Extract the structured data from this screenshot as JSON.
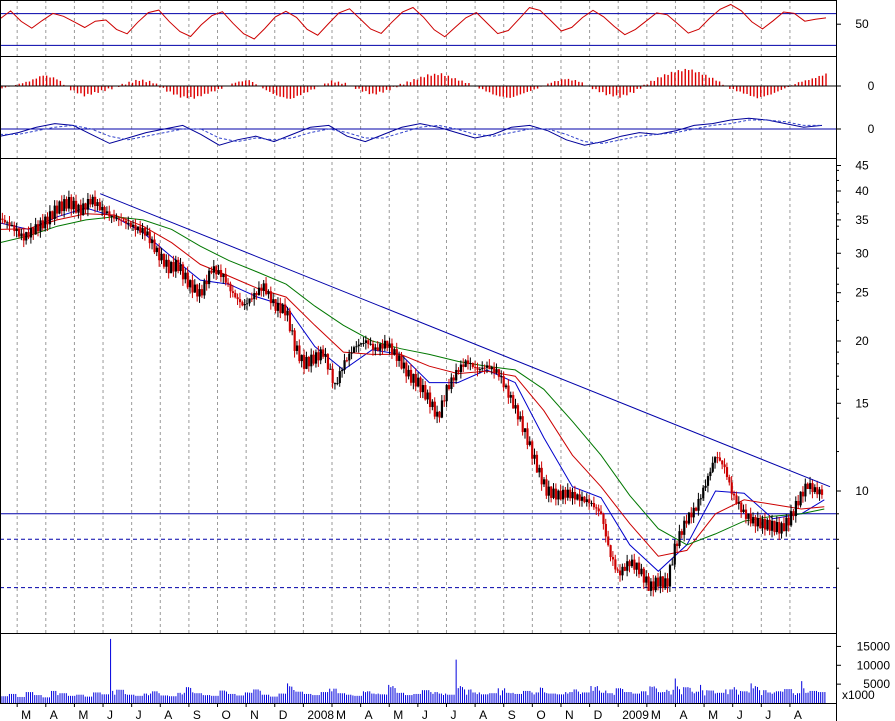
{
  "colors": {
    "background": "#ffffff",
    "frame": "#000000",
    "grid": "#9a9a9a",
    "price_up": "#000000",
    "price_down": "#cc0000",
    "ma_fast": "#0000cc",
    "ma_mid": "#cc0000",
    "ma_slow": "#007700",
    "trendline": "#0000aa",
    "hline": "#0000aa",
    "osc_line": "#cc0000",
    "hist": "#dd0000",
    "macd_line": "#000099",
    "macd_signal": "#3344cc",
    "volume": "#0000dd"
  },
  "chart_data": [
    {
      "type": "line",
      "panel": "oscillator",
      "ylim": [
        0,
        100
      ],
      "y_ticks": [
        50
      ],
      "reference_levels": [
        60,
        30
      ],
      "series": [
        {
          "values": [
            55,
            60,
            50,
            46,
            56,
            63,
            58,
            50,
            44,
            52,
            56,
            48,
            42,
            50,
            58,
            62,
            54,
            46,
            40,
            48,
            55,
            60,
            52,
            44,
            38,
            45,
            54,
            60,
            57,
            48,
            42,
            50,
            58,
            62,
            55,
            48,
            44,
            52,
            59,
            63,
            56,
            47,
            41,
            48,
            54,
            58,
            50,
            43,
            47,
            56,
            64,
            60,
            52,
            45,
            50,
            58,
            62,
            54,
            46,
            41,
            48,
            55,
            60,
            56,
            48,
            42,
            48,
            58,
            64,
            66,
            60,
            52,
            48,
            56,
            62,
            58,
            50,
            54,
            58
          ]
        }
      ]
    },
    {
      "type": "bar",
      "panel": "histogram",
      "y_ticks": [
        0
      ],
      "series": [
        {
          "values": [
            -0.2,
            0.1,
            0.4,
            0.9,
            0.6,
            -0.3,
            -0.8,
            -0.5,
            -0.2,
            0.2,
            0.5,
            0.3,
            -0.4,
            -0.9,
            -1.0,
            -0.6,
            -0.2,
            0.3,
            0.5,
            -0.2,
            -0.8,
            -1.1,
            -0.6,
            -0.1,
            0.4,
            0.2,
            -0.3,
            -0.7,
            -0.4,
            0.1,
            0.5,
            0.9,
            1.0,
            0.6,
            0.2,
            -0.3,
            -0.8,
            -1.0,
            -0.6,
            -0.2,
            0.3,
            0.6,
            0.4,
            -0.2,
            -0.7,
            -0.9,
            -0.5,
            0.2,
            0.8,
            1.2,
            1.4,
            1.0,
            0.5,
            -0.2,
            -0.6,
            -1.0,
            -0.7,
            -0.2,
            0.3,
            0.6,
            1.0
          ]
        }
      ]
    },
    {
      "type": "line",
      "panel": "macd",
      "y_ticks": [
        0
      ],
      "series": [
        {
          "values": [
            -0.4,
            -0.2,
            0.1,
            0.3,
            0.2,
            -0.3,
            -0.8,
            -0.5,
            -0.2,
            0.0,
            0.2,
            -0.3,
            -0.9,
            -0.6,
            -0.4,
            -0.7,
            -0.3,
            0.1,
            0.2,
            -0.4,
            -0.7,
            -0.3,
            0.1,
            0.3,
            0.1,
            -0.2,
            -0.5,
            -0.3,
            0.1,
            0.2,
            -0.1,
            -0.6,
            -0.9,
            -0.7,
            -0.4,
            -0.2,
            -0.3,
            -0.1,
            0.2,
            0.3,
            0.5,
            0.6,
            0.5,
            0.3,
            0.1,
            0.2
          ]
        },
        {
          "values": [
            -0.3,
            -0.3,
            -0.1,
            0.1,
            0.2,
            0.0,
            -0.4,
            -0.6,
            -0.4,
            -0.2,
            0.0,
            0.0,
            -0.5,
            -0.7,
            -0.5,
            -0.6,
            -0.5,
            -0.2,
            0.0,
            -0.2,
            -0.5,
            -0.5,
            -0.2,
            0.1,
            0.2,
            0.0,
            -0.3,
            -0.4,
            -0.2,
            0.0,
            0.0,
            -0.3,
            -0.7,
            -0.8,
            -0.6,
            -0.4,
            -0.3,
            -0.2,
            0.0,
            0.2,
            0.3,
            0.5,
            0.5,
            0.4,
            0.2,
            0.2
          ]
        }
      ]
    },
    {
      "type": "line",
      "panel": "price",
      "log_scale": true,
      "ylim": [
        6.2,
        47
      ],
      "y_ticks": [
        45,
        40,
        35,
        30,
        25,
        20,
        15,
        10
      ],
      "x_ticks": [
        "M",
        "A",
        "M",
        "J",
        "J",
        "A",
        "S",
        "O",
        "N",
        "D",
        "2008",
        "M",
        "A",
        "M",
        "J",
        "J",
        "A",
        "S",
        "O",
        "N",
        "D",
        "2009",
        "M",
        "A",
        "M",
        "J",
        "J",
        "A"
      ],
      "x_range_months": [
        0,
        29
      ],
      "price": [
        [
          0.0,
          35.2
        ],
        [
          0.4,
          34.0
        ],
        [
          0.8,
          32.2
        ],
        [
          1.2,
          33.5
        ],
        [
          1.6,
          34.8
        ],
        [
          2.0,
          37.0
        ],
        [
          2.4,
          38.0
        ],
        [
          2.8,
          36.5
        ],
        [
          3.2,
          38.5
        ],
        [
          3.5,
          37.0
        ],
        [
          3.9,
          35.5
        ],
        [
          4.3,
          34.8
        ],
        [
          4.7,
          33.8
        ],
        [
          5.1,
          33.0
        ],
        [
          5.5,
          30.0
        ],
        [
          5.9,
          28.0
        ],
        [
          6.2,
          28.5
        ],
        [
          6.6,
          26.0
        ],
        [
          7.0,
          24.8
        ],
        [
          7.4,
          28.0
        ],
        [
          7.8,
          27.0
        ],
        [
          8.1,
          25.0
        ],
        [
          8.5,
          23.5
        ],
        [
          8.9,
          24.8
        ],
        [
          9.2,
          25.8
        ],
        [
          9.6,
          23.5
        ],
        [
          10.0,
          23.0
        ],
        [
          10.3,
          19.5
        ],
        [
          10.6,
          18.0
        ],
        [
          11.0,
          18.5
        ],
        [
          11.3,
          19.0
        ],
        [
          11.7,
          16.2
        ],
        [
          12.0,
          18.0
        ],
        [
          12.4,
          19.5
        ],
        [
          12.8,
          20.0
        ],
        [
          13.1,
          19.2
        ],
        [
          13.5,
          19.8
        ],
        [
          13.9,
          18.5
        ],
        [
          14.3,
          17.0
        ],
        [
          14.6,
          16.5
        ],
        [
          15.0,
          15.2
        ],
        [
          15.3,
          14.0
        ],
        [
          15.6,
          16.0
        ],
        [
          16.0,
          17.5
        ],
        [
          16.3,
          18.2
        ],
        [
          16.7,
          17.5
        ],
        [
          17.0,
          17.8
        ],
        [
          17.4,
          17.3
        ],
        [
          17.8,
          15.5
        ],
        [
          18.1,
          14.2
        ],
        [
          18.4,
          12.8
        ],
        [
          18.8,
          11.0
        ],
        [
          19.1,
          10.0
        ],
        [
          19.5,
          9.8
        ],
        [
          19.8,
          9.9
        ],
        [
          20.2,
          9.7
        ],
        [
          20.6,
          9.5
        ],
        [
          21.0,
          9.0
        ],
        [
          21.3,
          7.5
        ],
        [
          21.6,
          6.8
        ],
        [
          22.0,
          7.2
        ],
        [
          22.3,
          7.0
        ],
        [
          22.7,
          6.4
        ],
        [
          23.0,
          6.6
        ],
        [
          23.3,
          6.5
        ],
        [
          23.6,
          7.8
        ],
        [
          24.0,
          8.8
        ],
        [
          24.3,
          9.2
        ],
        [
          24.7,
          10.5
        ],
        [
          25.0,
          11.8
        ],
        [
          25.3,
          11.2
        ],
        [
          25.6,
          9.8
        ],
        [
          26.0,
          9.0
        ],
        [
          26.3,
          8.7
        ],
        [
          26.6,
          8.6
        ],
        [
          27.0,
          8.5
        ],
        [
          27.3,
          8.4
        ],
        [
          27.6,
          8.8
        ],
        [
          27.9,
          9.6
        ],
        [
          28.2,
          10.3
        ],
        [
          28.5,
          10.0
        ],
        [
          28.8,
          9.9
        ]
      ],
      "moving_averages": [
        {
          "points": [
            [
              0.0,
              34.5
            ],
            [
              1.0,
              33.5
            ],
            [
              2.0,
              35.5
            ],
            [
              3.0,
              37.0
            ],
            [
              4.0,
              35.5
            ],
            [
              5.0,
              33.0
            ],
            [
              6.0,
              29.5
            ],
            [
              7.0,
              26.5
            ],
            [
              8.0,
              26.0
            ],
            [
              9.0,
              24.5
            ],
            [
              10.0,
              23.5
            ],
            [
              11.0,
              19.5
            ],
            [
              12.0,
              17.5
            ],
            [
              13.0,
              19.2
            ],
            [
              14.0,
              18.8
            ],
            [
              15.0,
              16.5
            ],
            [
              16.0,
              16.5
            ],
            [
              17.0,
              17.5
            ],
            [
              18.0,
              16.5
            ],
            [
              19.0,
              12.8
            ],
            [
              20.0,
              10.2
            ],
            [
              21.0,
              9.7
            ],
            [
              22.0,
              7.8
            ],
            [
              23.0,
              6.9
            ],
            [
              24.0,
              7.8
            ],
            [
              25.0,
              10.0
            ],
            [
              26.0,
              9.9
            ],
            [
              27.0,
              8.8
            ],
            [
              28.0,
              9.0
            ],
            [
              28.8,
              9.6
            ]
          ]
        },
        {
          "points": [
            [
              0.0,
              33.5
            ],
            [
              1.0,
              33.6
            ],
            [
              2.0,
              35.0
            ],
            [
              3.0,
              36.0
            ],
            [
              4.0,
              35.8
            ],
            [
              5.0,
              34.0
            ],
            [
              6.0,
              31.5
            ],
            [
              7.0,
              28.5
            ],
            [
              8.0,
              27.0
            ],
            [
              9.0,
              25.5
            ],
            [
              10.0,
              24.5
            ],
            [
              11.0,
              21.5
            ],
            [
              12.0,
              19.0
            ],
            [
              13.0,
              18.8
            ],
            [
              14.0,
              18.8
            ],
            [
              15.0,
              17.8
            ],
            [
              16.0,
              17.2
            ],
            [
              17.0,
              17.4
            ],
            [
              18.0,
              17.0
            ],
            [
              19.0,
              14.5
            ],
            [
              20.0,
              11.8
            ],
            [
              21.0,
              10.2
            ],
            [
              22.0,
              8.6
            ],
            [
              23.0,
              7.4
            ],
            [
              24.0,
              7.6
            ],
            [
              25.0,
              9.0
            ],
            [
              26.0,
              9.6
            ],
            [
              27.0,
              9.4
            ],
            [
              28.0,
              9.2
            ],
            [
              28.8,
              9.3
            ]
          ]
        },
        {
          "points": [
            [
              0.0,
              31.5
            ],
            [
              1.0,
              32.5
            ],
            [
              2.0,
              34.0
            ],
            [
              3.0,
              35.0
            ],
            [
              4.0,
              35.5
            ],
            [
              5.0,
              35.0
            ],
            [
              6.0,
              33.5
            ],
            [
              7.0,
              31.0
            ],
            [
              8.0,
              29.0
            ],
            [
              9.0,
              27.5
            ],
            [
              10.0,
              26.0
            ],
            [
              11.0,
              23.5
            ],
            [
              12.0,
              21.5
            ],
            [
              13.0,
              20.0
            ],
            [
              14.0,
              19.3
            ],
            [
              15.0,
              18.8
            ],
            [
              16.0,
              18.2
            ],
            [
              17.0,
              17.8
            ],
            [
              18.0,
              17.5
            ],
            [
              19.0,
              16.0
            ],
            [
              20.0,
              13.8
            ],
            [
              21.0,
              11.8
            ],
            [
              22.0,
              9.8
            ],
            [
              23.0,
              8.4
            ],
            [
              24.0,
              7.8
            ],
            [
              25.0,
              8.2
            ],
            [
              26.0,
              8.7
            ],
            [
              27.0,
              8.9
            ],
            [
              28.0,
              9.0
            ],
            [
              28.8,
              9.2
            ]
          ]
        }
      ],
      "trendline": [
        [
          3.5,
          39.5
        ],
        [
          29.0,
          10.2
        ]
      ],
      "horizontal_levels": [
        {
          "y": 9.0,
          "style": "solid"
        },
        {
          "y": 8.0,
          "style": "dashed"
        },
        {
          "y": 6.4,
          "style": "dashed"
        }
      ]
    },
    {
      "type": "bar",
      "panel": "volume",
      "ylim": [
        0,
        17500
      ],
      "y_ticks": [
        15000,
        10000,
        5000
      ],
      "units_label": "x1000",
      "series": [
        {
          "values": [
            1800,
            2400,
            1600,
            2900,
            2100,
            1500,
            3200,
            2600,
            1900,
            2200,
            1700,
            2800,
            2300,
            17000,
            3500,
            2200,
            1900,
            2500,
            3100,
            2000,
            1800,
            2700,
            4200,
            2600,
            2100,
            1900,
            3300,
            2400,
            2000,
            2800,
            3600,
            2200,
            1700,
            2500,
            5200,
            3000,
            2400,
            2100,
            2900,
            3800,
            2600,
            2200,
            1900,
            3100,
            2500,
            2300,
            4800,
            2700,
            2100,
            2400,
            3400,
            2900,
            2500,
            2200,
            11500,
            3600,
            2800,
            2300,
            2600,
            3900,
            2700,
            2400,
            3200,
            2800,
            4100,
            2500,
            2300,
            2900,
            3600,
            2800,
            4500,
            3300,
            2600,
            3900,
            2900,
            2500,
            3100,
            4400,
            2900,
            3500,
            6500,
            4200,
            3000,
            4800,
            3300,
            2700,
            3600,
            4200,
            3100,
            5200,
            3400,
            2800,
            3100,
            3700,
            2600,
            5800,
            3200,
            2900
          ]
        }
      ]
    }
  ]
}
